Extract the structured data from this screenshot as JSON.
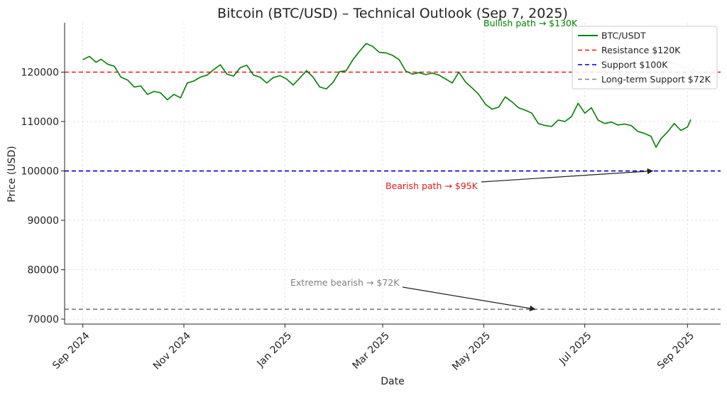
{
  "chart_data": {
    "type": "line",
    "title": "Bitcoin (BTC/USD) – Technical Outlook (Sep 7, 2025)",
    "xlabel": "Date",
    "ylabel": "Price (USD)",
    "x_range": [
      "2024-08-21",
      "2025-09-21"
    ],
    "ylim": [
      69000,
      130000
    ],
    "grid": true,
    "legend_position": "top-right",
    "x_ticks": [
      {
        "date": "2024-09-01",
        "label": "Sep 2024"
      },
      {
        "date": "2024-11-01",
        "label": "Nov 2024"
      },
      {
        "date": "2025-01-01",
        "label": "Jan 2025"
      },
      {
        "date": "2025-03-01",
        "label": "Mar 2025"
      },
      {
        "date": "2025-05-01",
        "label": "May 2025"
      },
      {
        "date": "2025-07-01",
        "label": "Jul 2025"
      },
      {
        "date": "2025-09-01",
        "label": "Sep 2025"
      }
    ],
    "y_ticks": [
      70000,
      80000,
      90000,
      100000,
      110000,
      120000
    ],
    "series": [
      {
        "name": "BTC/USDT",
        "color": "#008000",
        "points": [
          [
            "2024-09-01",
            122500
          ],
          [
            "2024-09-05",
            123200
          ],
          [
            "2024-09-09",
            122000
          ],
          [
            "2024-09-12",
            122600
          ],
          [
            "2024-09-16",
            121600
          ],
          [
            "2024-09-20",
            121200
          ],
          [
            "2024-09-24",
            119000
          ],
          [
            "2024-09-28",
            118400
          ],
          [
            "2024-10-02",
            117000
          ],
          [
            "2024-10-06",
            117200
          ],
          [
            "2024-10-10",
            115500
          ],
          [
            "2024-10-14",
            116100
          ],
          [
            "2024-10-18",
            115800
          ],
          [
            "2024-10-22",
            114400
          ],
          [
            "2024-10-26",
            115500
          ],
          [
            "2024-10-30",
            114800
          ],
          [
            "2024-11-03",
            117800
          ],
          [
            "2024-11-07",
            118200
          ],
          [
            "2024-11-11",
            119000
          ],
          [
            "2024-11-15",
            119400
          ],
          [
            "2024-11-19",
            120500
          ],
          [
            "2024-11-23",
            121500
          ],
          [
            "2024-11-27",
            119600
          ],
          [
            "2024-12-01",
            119200
          ],
          [
            "2024-12-05",
            120900
          ],
          [
            "2024-12-09",
            121400
          ],
          [
            "2024-12-13",
            119400
          ],
          [
            "2024-12-17",
            119000
          ],
          [
            "2024-12-21",
            117800
          ],
          [
            "2024-12-25",
            118900
          ],
          [
            "2024-12-29",
            119300
          ],
          [
            "2025-01-02",
            118600
          ],
          [
            "2025-01-06",
            117400
          ],
          [
            "2025-01-10",
            118800
          ],
          [
            "2025-01-14",
            120300
          ],
          [
            "2025-01-18",
            119000
          ],
          [
            "2025-01-22",
            117000
          ],
          [
            "2025-01-26",
            116600
          ],
          [
            "2025-01-30",
            117900
          ],
          [
            "2025-02-03",
            120100
          ],
          [
            "2025-02-07",
            120300
          ],
          [
            "2025-02-11",
            122500
          ],
          [
            "2025-02-15",
            124200
          ],
          [
            "2025-02-19",
            125800
          ],
          [
            "2025-02-23",
            125200
          ],
          [
            "2025-02-27",
            124000
          ],
          [
            "2025-03-03",
            123900
          ],
          [
            "2025-03-07",
            123400
          ],
          [
            "2025-03-11",
            122500
          ],
          [
            "2025-03-15",
            120200
          ],
          [
            "2025-03-19",
            119600
          ],
          [
            "2025-03-23",
            119900
          ],
          [
            "2025-03-27",
            119500
          ],
          [
            "2025-03-31",
            119800
          ],
          [
            "2025-04-04",
            119400
          ],
          [
            "2025-04-08",
            118600
          ],
          [
            "2025-04-12",
            117800
          ],
          [
            "2025-04-16",
            120000
          ],
          [
            "2025-04-20",
            118000
          ],
          [
            "2025-04-24",
            116800
          ],
          [
            "2025-04-28",
            115500
          ],
          [
            "2025-05-02",
            113500
          ],
          [
            "2025-05-06",
            112500
          ],
          [
            "2025-05-10",
            112900
          ],
          [
            "2025-05-14",
            115000
          ],
          [
            "2025-05-18",
            114000
          ],
          [
            "2025-05-22",
            112800
          ],
          [
            "2025-05-26",
            112300
          ],
          [
            "2025-05-30",
            111700
          ],
          [
            "2025-06-03",
            109600
          ],
          [
            "2025-06-07",
            109200
          ],
          [
            "2025-06-11",
            109000
          ],
          [
            "2025-06-15",
            110300
          ],
          [
            "2025-06-19",
            110000
          ],
          [
            "2025-06-23",
            111000
          ],
          [
            "2025-06-27",
            113700
          ],
          [
            "2025-07-01",
            111700
          ],
          [
            "2025-07-05",
            112800
          ],
          [
            "2025-07-09",
            110300
          ],
          [
            "2025-07-13",
            109600
          ],
          [
            "2025-07-17",
            109900
          ],
          [
            "2025-07-21",
            109300
          ],
          [
            "2025-07-25",
            109500
          ],
          [
            "2025-07-29",
            109200
          ],
          [
            "2025-08-02",
            108000
          ],
          [
            "2025-08-06",
            107600
          ],
          [
            "2025-08-10",
            107000
          ],
          [
            "2025-08-13",
            104800
          ],
          [
            "2025-08-16",
            106500
          ],
          [
            "2025-08-20",
            107900
          ],
          [
            "2025-08-24",
            109600
          ],
          [
            "2025-08-28",
            108200
          ],
          [
            "2025-09-01",
            108900
          ],
          [
            "2025-09-03",
            110400
          ]
        ]
      }
    ],
    "levels": [
      {
        "name": "Resistance $120K",
        "value": 120000,
        "color": "#e41a1c"
      },
      {
        "name": "Support $100K",
        "value": 100000,
        "color": "#0000cc"
      },
      {
        "name": "Long-term Support $72K",
        "value": 72000,
        "color": "#808080"
      }
    ],
    "annotations": [
      {
        "text": "Bullish path → $130K",
        "color": "#008000",
        "arrow_to": {
          "date": "2025-09-07",
          "value": 120000
        },
        "arrow_color": "#f4b6b0"
      },
      {
        "text": "Bearish path → $95K",
        "color": "#e41a1c",
        "arrow_to": {
          "date": "2025-08-11",
          "value": 100000
        },
        "arrow_color": "#222222"
      },
      {
        "text": "Extreme bearish → $72K",
        "color": "#808080",
        "arrow_to": {
          "date": "2025-06-01",
          "value": 72000
        },
        "arrow_color": "#222222"
      }
    ]
  }
}
